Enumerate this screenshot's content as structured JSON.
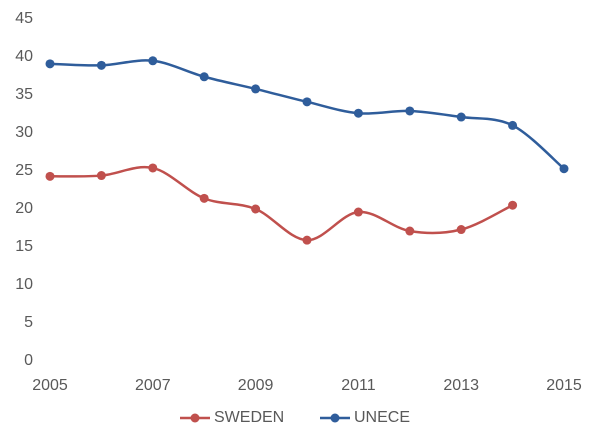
{
  "chart_data": {
    "type": "line",
    "x": [
      2005,
      2006,
      2007,
      2008,
      2009,
      2010,
      2011,
      2012,
      2013,
      2014,
      2015
    ],
    "series": [
      {
        "name": "SWEDEN",
        "color": "#c0504d",
        "values": [
          24.3,
          24.4,
          25.4,
          21.4,
          20.0,
          15.9,
          19.6,
          17.1,
          17.3,
          20.5,
          null
        ]
      },
      {
        "name": "UNECE",
        "color": "#2f5d9b",
        "values": [
          39.1,
          38.9,
          39.5,
          37.4,
          35.8,
          34.1,
          32.6,
          32.9,
          32.1,
          31.0,
          25.3
        ]
      }
    ],
    "xlim": [
      2005,
      2015
    ],
    "xticks": [
      2005,
      2007,
      2009,
      2011,
      2013,
      2015
    ],
    "ylim": [
      0,
      45
    ],
    "yticks": [
      0,
      5,
      10,
      15,
      20,
      25,
      30,
      35,
      40,
      45
    ],
    "grid": false,
    "smooth": true,
    "legend": "bottom"
  }
}
